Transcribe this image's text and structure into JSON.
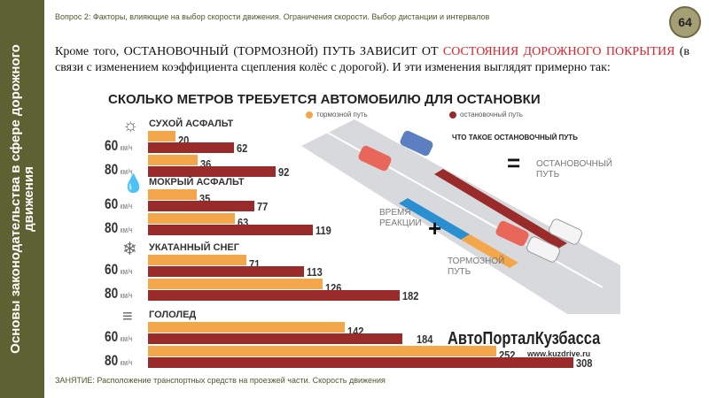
{
  "sidebar": {
    "title": "Основы законодательства в сфере дорожного движения"
  },
  "header": {
    "question": "Вопрос 2: Факторы, влияющие на выбор скорости движения. Ограничения скорости. Выбор дистанции и интервалов",
    "page_number": "64"
  },
  "intro": {
    "part1": "Кроме того, ОСТАНОВОЧНЫЙ (ТОРМОЗНОЙ) ПУТЬ ЗАВИСИТ ОТ ",
    "highlight": "СОСТОЯНИЯ ДОРОЖНОГО ПОКРЫТИЯ",
    "part2": " (в связи с изменением коэффициента сцепления колёс с дорогой). И эти изменения выглядят примерно так:"
  },
  "footer": "ЗАНЯТИЕ: Расположение транспортных средств на проезжей части. Скорость движения",
  "illustration": {
    "legend_braking": "тормозной путь",
    "legend_stopping": "остановочный путь",
    "what_is": "ЧТО ТАКОЕ ОСТАНОВОЧНЫЙ ПУТЬ",
    "equals": "=",
    "stopping": "ОСТАНОВОЧНЫЙ ПУТЬ",
    "reaction": "ВРЕМЯ РЕАКЦИИ",
    "plus": "+",
    "braking": "ТОРМОЗНОЙ ПУТЬ",
    "brand": "АвтоПорталКузбасса",
    "url": "www.kuzdrive.ru"
  },
  "colors": {
    "braking": "#f4a64b",
    "stopping": "#9a2b2b",
    "reaction": "#2a8fd0",
    "sidebar": "#5e6232"
  },
  "chart_data": {
    "type": "bar",
    "title": "СКОЛЬКО МЕТРОВ ТРЕБУЕТСЯ АВТОМОБИЛЮ ДЛЯ ОСТАНОВКИ",
    "unit": "км/ч",
    "speeds": [
      "60",
      "80"
    ],
    "series_names": [
      "тормозной путь",
      "остановочный путь"
    ],
    "groups": [
      {
        "label": "СУХОЙ АСФАЛЬТ",
        "icon": "sun-icon",
        "braking": [
          20,
          36
        ],
        "stopping": [
          62,
          92
        ]
      },
      {
        "label": "МОКРЫЙ АСФАЛЬТ",
        "icon": "drop-icon",
        "braking": [
          35,
          63
        ],
        "stopping": [
          77,
          119
        ]
      },
      {
        "label": "УКАТАННЫЙ СНЕГ",
        "icon": "snowflake-icon",
        "braking": [
          71,
          126
        ],
        "stopping": [
          113,
          182
        ]
      },
      {
        "label": "ГОЛОЛЕД",
        "icon": "ice-icon",
        "braking": [
          142,
          252
        ],
        "stopping": [
          184,
          308
        ]
      }
    ]
  }
}
